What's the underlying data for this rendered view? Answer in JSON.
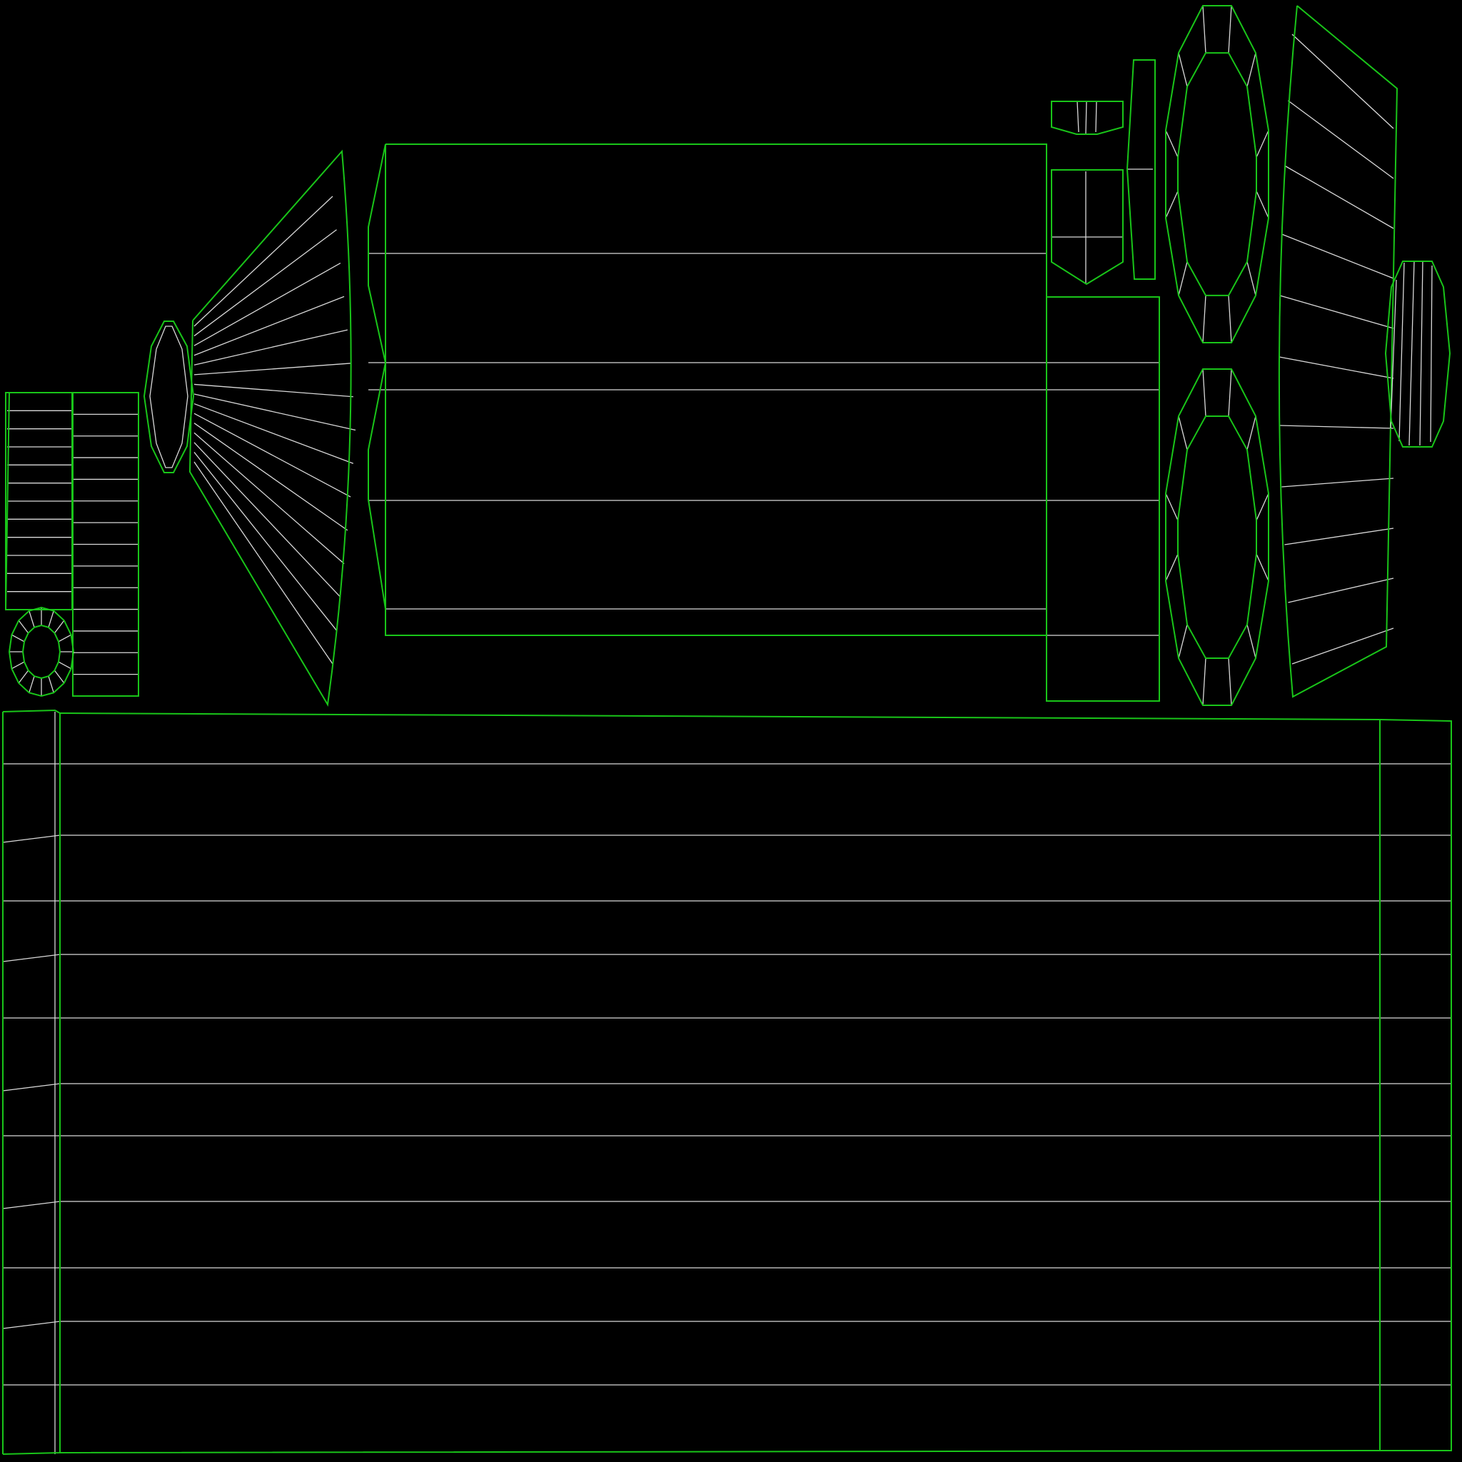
{
  "view": {
    "type": "uv-layout-wireframe",
    "background_color": "#000000",
    "seam_color": "#19c519",
    "edge_color": "#d9d9d9"
  },
  "islands": [
    "cylinder-body-strip",
    "main-panel",
    "cone-fan",
    "end-cap-small",
    "ring-cap",
    "short-strip-narrow",
    "short-strip-wide",
    "block-panel",
    "small-trapezoid",
    "pentagon-piece",
    "tall-sliver",
    "octagon-cap-top",
    "octagon-cap-bottom",
    "fan-panel-right",
    "ellipse-cap-right"
  ]
}
